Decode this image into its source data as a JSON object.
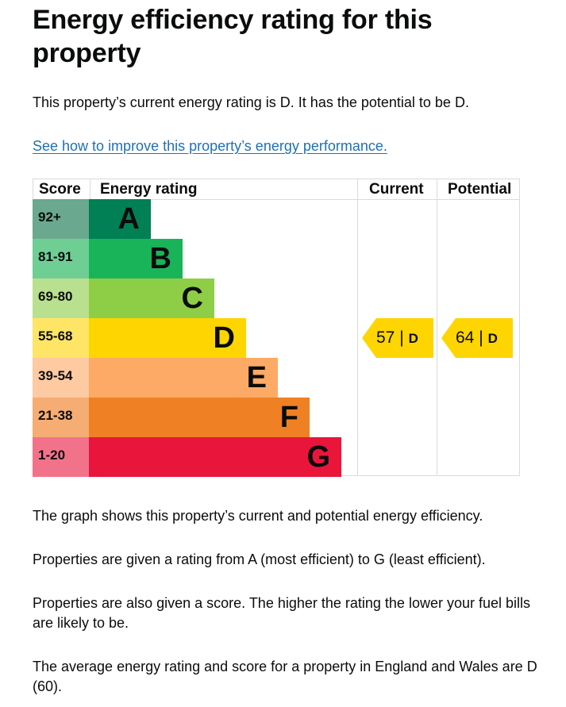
{
  "heading": "Energy efficiency rating for this property",
  "lead": "This property’s current energy rating is D. It has the potential to be D.",
  "improve_link": "See how to improve this property’s energy performance.",
  "epc": {
    "headers": {
      "score": "Score",
      "rating": "Energy rating",
      "current": "Current",
      "potential": "Potential"
    },
    "bands": [
      {
        "score": "92+",
        "letter": "A",
        "color": "#008054",
        "score_bg": "#6aa88f"
      },
      {
        "score": "81-91",
        "letter": "B",
        "color": "#19b459",
        "score_bg": "#6fce94"
      },
      {
        "score": "69-80",
        "letter": "C",
        "color": "#8dce46",
        "score_bg": "#b9e08e"
      },
      {
        "score": "55-68",
        "letter": "D",
        "color": "#ffd500",
        "score_bg": "#ffe566"
      },
      {
        "score": "39-54",
        "letter": "E",
        "color": "#fcaa65",
        "score_bg": "#fdcaa2"
      },
      {
        "score": "21-38",
        "letter": "F",
        "color": "#ef8023",
        "score_bg": "#f5ad73"
      },
      {
        "score": "1-20",
        "letter": "G",
        "color": "#e9153b",
        "score_bg": "#f2728a"
      }
    ],
    "current": {
      "score": "57",
      "letter": "D",
      "separator": "|",
      "color": "#ffd500"
    },
    "potential": {
      "score": "64",
      "letter": "D",
      "separator": "|",
      "color": "#ffd500"
    }
  },
  "paragraphs": [
    "The graph shows this property’s current and potential energy efficiency.",
    "Properties are given a rating from A (most efficient) to G (least efficient).",
    "Properties are also given a score. The higher the rating the lower your fuel bills are likely to be.",
    "The average energy rating and score for a property in England and Wales are D (60)."
  ]
}
